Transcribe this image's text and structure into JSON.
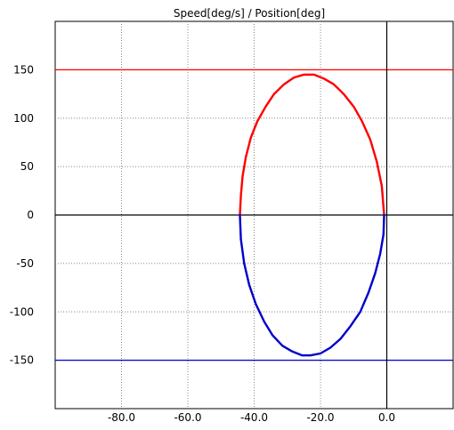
{
  "chart_data": {
    "type": "line",
    "title": "Speed[deg/s] / Position[deg]",
    "xlabel": "",
    "ylabel": "",
    "xlim": [
      -100.0,
      20.0
    ],
    "ylim": [
      -200,
      200
    ],
    "x_ticks": [
      -80.0,
      -60.0,
      -40.0,
      -20.0,
      0.0
    ],
    "x_tick_labels": [
      "-80.0",
      "-60.0",
      "-40.0",
      "-20.0",
      "0.0"
    ],
    "y_ticks": [
      -150,
      -100,
      -50,
      0,
      50,
      100,
      150
    ],
    "y_tick_labels": [
      "-150",
      "-100",
      "-50",
      "0",
      "50",
      "100",
      "150"
    ],
    "grid": true,
    "reference_lines": [
      {
        "axis": "y",
        "value": 150,
        "color": "#ff0000"
      },
      {
        "axis": "y",
        "value": -150,
        "color": "#0000cc"
      },
      {
        "axis": "y",
        "value": 0,
        "color": "#000000"
      },
      {
        "axis": "x",
        "value": 0,
        "color": "#000000"
      }
    ],
    "series": [
      {
        "color": "#ff0000",
        "x": [
          -0.8,
          -1.5,
          -3.0,
          -5.0,
          -7.5,
          -10.0,
          -13.0,
          -16.0,
          -19.0,
          -22.0,
          -25.0,
          -28.0,
          -31.0,
          -34.0,
          -36.5,
          -39.0,
          -41.0,
          -42.5,
          -43.5,
          -44.0,
          -44.3
        ],
        "y": [
          0,
          30,
          55,
          78,
          97,
          112,
          125,
          135,
          141,
          145,
          145,
          142,
          135,
          125,
          112,
          97,
          80,
          60,
          40,
          20,
          0
        ]
      },
      {
        "color": "#0000cc",
        "x": [
          -44.3,
          -44.0,
          -43.0,
          -41.5,
          -39.5,
          -37.0,
          -34.5,
          -31.5,
          -28.5,
          -25.5,
          -23.0,
          -20.0,
          -17.0,
          -14.0,
          -11.0,
          -8.0,
          -5.5,
          -3.5,
          -2.0,
          -1.0,
          -0.8
        ],
        "y": [
          0,
          -25,
          -50,
          -72,
          -92,
          -110,
          -124,
          -135,
          -141,
          -145,
          -145,
          -143,
          -137,
          -128,
          -115,
          -100,
          -80,
          -60,
          -40,
          -20,
          0
        ]
      }
    ]
  }
}
